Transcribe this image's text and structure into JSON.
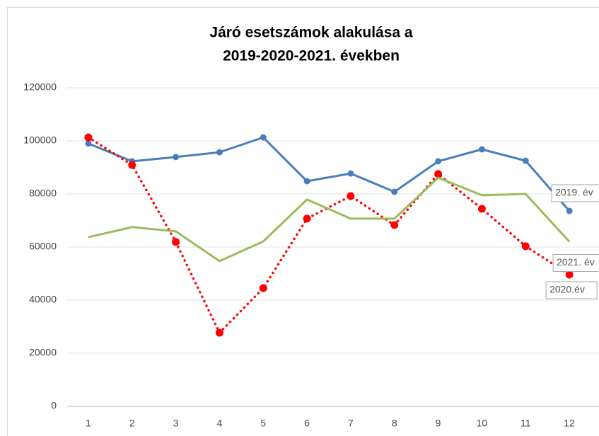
{
  "chart_data": {
    "type": "line",
    "title": [
      "Járó esetszámok alakulása a",
      "2019-2020-2021. években"
    ],
    "categories": [
      "1",
      "2",
      "3",
      "4",
      "5",
      "6",
      "7",
      "8",
      "9",
      "10",
      "11",
      "12"
    ],
    "series": [
      {
        "name": "2019. év",
        "color": "#4a7ebb",
        "style": "solid",
        "markers": true,
        "values": [
          99000,
          92300,
          93900,
          95700,
          101300,
          84800,
          87700,
          80800,
          92300,
          96800,
          92500,
          73600
        ]
      },
      {
        "name": "2020.év",
        "color": "#ff0000",
        "style": "dotted",
        "markers": true,
        "values": [
          101300,
          90900,
          61900,
          27700,
          44500,
          70700,
          79200,
          68300,
          87500,
          74400,
          60300,
          49600
        ]
      },
      {
        "name": "2021. év",
        "color": "#9bbb59",
        "style": "solid",
        "markers": false,
        "values": [
          63700,
          67500,
          65900,
          54700,
          62100,
          77900,
          70700,
          70700,
          86100,
          79500,
          80000,
          62000
        ]
      }
    ],
    "ylim": [
      0,
      120000
    ],
    "yticks": [
      0,
      20000,
      40000,
      60000,
      80000,
      100000,
      120000
    ],
    "grid": true
  }
}
